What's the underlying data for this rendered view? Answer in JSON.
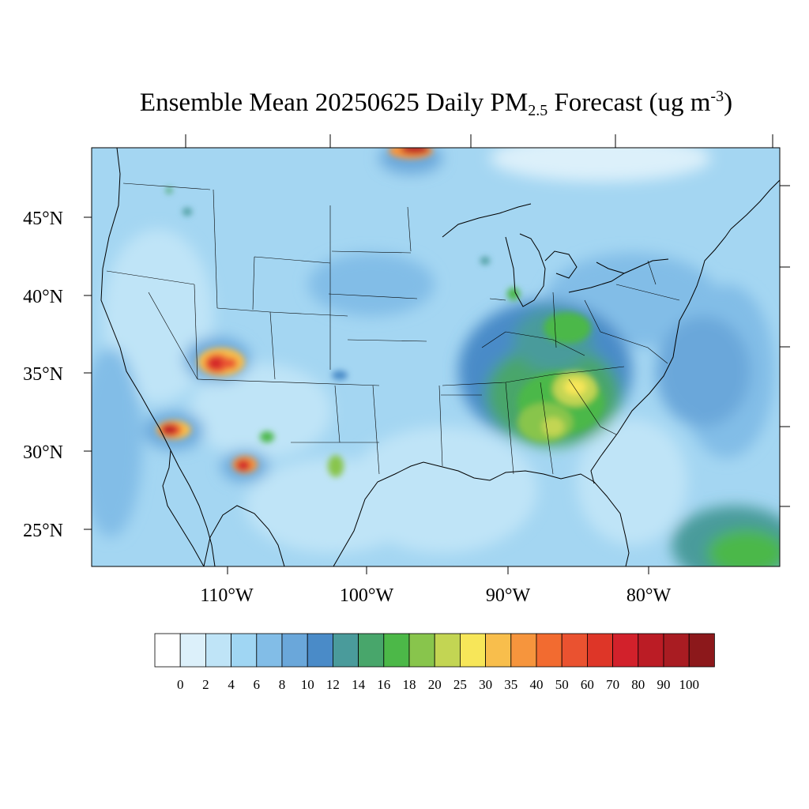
{
  "title": {
    "prefix": "Ensemble Mean 20250625 Daily PM",
    "subscript": "2.5",
    "middle": " Forecast (ug m",
    "superscript": "-3",
    "suffix": ")"
  },
  "latitude_labels": [
    "45°N",
    "40°N",
    "35°N",
    "30°N",
    "25°N"
  ],
  "longitude_labels": [
    "110°W",
    "100°W",
    "90°W",
    "80°W"
  ],
  "colorbar": {
    "colors": [
      "#ffffff",
      "#dcf0fa",
      "#bfe4f7",
      "#a0d6f3",
      "#82bde7",
      "#6aa7da",
      "#4a8bc8",
      "#4a9b9b",
      "#48a66b",
      "#4cb848",
      "#88c54c",
      "#c3d553",
      "#f7e659",
      "#f8be4c",
      "#f6953d",
      "#f26b30",
      "#ea5230",
      "#de3628",
      "#d2212b",
      "#bb1c25",
      "#a91c22",
      "#8c181b"
    ],
    "tick_labels": [
      "0",
      "2",
      "4",
      "6",
      "8",
      "10",
      "12",
      "14",
      "16",
      "18",
      "20",
      "25",
      "30",
      "35",
      "40",
      "50",
      "60",
      "70",
      "80",
      "90",
      "100"
    ]
  }
}
